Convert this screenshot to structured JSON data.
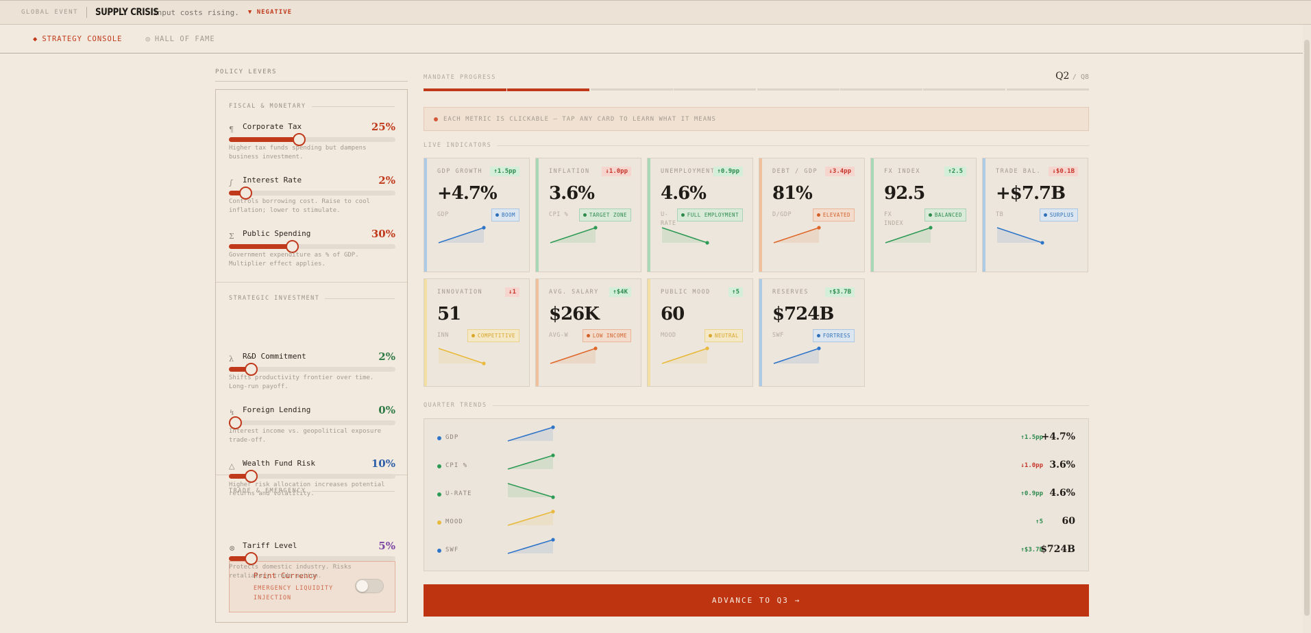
{
  "event": {
    "kicker": "GLOBAL EVENT",
    "title": "SUPPLY CRISIS",
    "description": "Input costs rising.",
    "badge": "▼ NEGATIVE"
  },
  "nav": [
    {
      "label": "STRATEGY CONSOLE",
      "icon": "◆",
      "active": true
    },
    {
      "label": "HALL OF FAME",
      "icon": "◎",
      "active": false
    }
  ],
  "levers": {
    "title": "POLICY LEVERS",
    "sections": [
      {
        "title": "FISCAL & MONETARY"
      },
      {
        "title": "STRATEGIC INVESTMENT"
      },
      {
        "title": "TRADE & EMERGENCY"
      }
    ],
    "items": [
      {
        "icon": "¶",
        "name": "Corporate Tax",
        "value": "25%",
        "fraction": 0.42,
        "color": "#c0391b",
        "desc": "Higher tax funds spending but dampens business investment."
      },
      {
        "icon": "∫",
        "name": "Interest Rate",
        "value": "2%",
        "fraction": 0.1,
        "color": "#c0391b",
        "desc": "Controls borrowing cost. Raise to cool inflation; lower to stimulate."
      },
      {
        "icon": "Σ",
        "name": "Public Spending",
        "value": "30%",
        "fraction": 0.38,
        "color": "#c0391b",
        "desc": "Government expenditure as % of GDP. Multiplier effect applies."
      },
      {
        "icon": "λ",
        "name": "R&D Commitment",
        "value": "2%",
        "fraction": 0.13,
        "color": "#2d7a45",
        "desc": "Shifts productivity frontier over time. Long-run payoff."
      },
      {
        "icon": "↯",
        "name": "Foreign Lending",
        "value": "0%",
        "fraction": 0.0,
        "color": "#2d7a45",
        "desc": "Interest income vs. geopolitical exposure trade-off."
      },
      {
        "icon": "△",
        "name": "Wealth Fund Risk",
        "value": "10%",
        "fraction": 0.13,
        "color": "#2f5fa8",
        "desc": "Higher risk allocation increases potential returns and volatility."
      },
      {
        "icon": "⊗",
        "name": "Tariff Level",
        "value": "5%",
        "fraction": 0.13,
        "color": "#7b46a3",
        "desc": "Protects domestic industry. Risks retaliatory trade action."
      }
    ],
    "print_currency": {
      "title": "Print Currency",
      "subtitle": "EMERGENCY LIQUIDITY INJECTION",
      "enabled": false
    }
  },
  "mandate": {
    "label": "MANDATE PROGRESS",
    "quarter": "Q2",
    "of": "/ Q8",
    "current": 2,
    "total": 8
  },
  "hint": "EACH METRIC IS CLICKABLE — TAP ANY CARD TO LEARN WHAT IT MEANS",
  "live_title": "LIVE INDICATORS",
  "cards": [
    {
      "label": "GDP GROWTH",
      "delta": "↑1.5pp",
      "dir": "up",
      "value": "+4.7%",
      "unit": "GDP",
      "tag": "BOOM",
      "tag_style": "blue",
      "color": "#2e74c9",
      "bar": "#aecbe6",
      "trend": [
        0,
        1
      ]
    },
    {
      "label": "INFLATION",
      "delta": "↓1.0pp",
      "dir": "down",
      "value": "3.6%",
      "unit": "CPI %",
      "tag": "TARGET ZONE",
      "tag_style": "green",
      "color": "#2d9a55",
      "bar": "#a9d8b6",
      "trend": [
        0,
        1
      ]
    },
    {
      "label": "UNEMPLOYMENT",
      "delta": "↑0.9pp",
      "dir": "up",
      "value": "4.6%",
      "unit": "U-RATE",
      "tag": "FULL EMPLOYMENT",
      "tag_style": "green",
      "color": "#2d9a55",
      "bar": "#a9d8b6",
      "trend": [
        1,
        0
      ]
    },
    {
      "label": "DEBT / GDP",
      "delta": "↓3.4pp",
      "dir": "down",
      "value": "81%",
      "unit": "D/GDP",
      "tag": "ELEVATED",
      "tag_style": "orange",
      "color": "#e0672a",
      "bar": "#f0bf9c",
      "trend": [
        0,
        1
      ]
    },
    {
      "label": "FX INDEX",
      "delta": "↑2.5",
      "dir": "up",
      "value": "92.5",
      "unit": "FX INDEX",
      "tag": "BALANCED",
      "tag_style": "green",
      "color": "#2d9a55",
      "bar": "#a9d8b6",
      "trend": [
        0,
        1
      ]
    },
    {
      "label": "TRADE BAL.",
      "delta": "↓$0.1B",
      "dir": "down",
      "value": "+$7.7B",
      "unit": "TB",
      "tag": "SURPLUS",
      "tag_style": "blue",
      "color": "#2e74c9",
      "bar": "#aecbe6",
      "trend": [
        1,
        0
      ]
    },
    {
      "label": "INNOVATION",
      "delta": "↓1",
      "dir": "down",
      "value": "51",
      "unit": "INN",
      "tag": "COMPETITIVE",
      "tag_style": "yellow",
      "color": "#e8b93a",
      "bar": "#f3dea3",
      "trend": [
        1,
        0
      ]
    },
    {
      "label": "AVG. SALARY",
      "delta": "↑$4K",
      "dir": "up",
      "value": "$26K",
      "unit": "AVG-W",
      "tag": "LOW INCOME",
      "tag_style": "orange",
      "color": "#e0672a",
      "bar": "#f0bf9c",
      "trend": [
        0,
        1
      ]
    },
    {
      "label": "PUBLIC MOOD",
      "delta": "↑5",
      "dir": "up",
      "value": "60",
      "unit": "MOOD",
      "tag": "NEUTRAL",
      "tag_style": "yellow",
      "color": "#e8b93a",
      "bar": "#f3dea3",
      "trend": [
        0,
        1
      ]
    },
    {
      "label": "RESERVES",
      "delta": "↑$3.7B",
      "dir": "up",
      "value": "$724B",
      "unit": "SWF",
      "tag": "FORTRESS",
      "tag_style": "blue",
      "color": "#2e74c9",
      "bar": "#aecbe6",
      "trend": [
        0,
        1
      ]
    }
  ],
  "trends": {
    "title": "QUARTER TRENDS",
    "rows": [
      {
        "label": "GDP",
        "delta": "↑1.5pp",
        "dir": "up",
        "value": "+4.7%",
        "color": "#2e74c9",
        "trend": [
          0,
          1
        ]
      },
      {
        "label": "CPI %",
        "delta": "↓1.0pp",
        "dir": "down",
        "value": "3.6%",
        "color": "#2d9a55",
        "trend": [
          0,
          1
        ]
      },
      {
        "label": "U-RATE",
        "delta": "↑0.9pp",
        "dir": "up",
        "value": "4.6%",
        "color": "#2d9a55",
        "trend": [
          1,
          0
        ]
      },
      {
        "label": "MOOD",
        "delta": "↑5",
        "dir": "up",
        "value": "60",
        "color": "#e8b93a",
        "trend": [
          0,
          1
        ]
      },
      {
        "label": "SWF",
        "delta": "↑$3.7B",
        "dir": "up",
        "value": "$724B",
        "color": "#2e74c9",
        "trend": [
          0,
          1
        ]
      }
    ]
  },
  "advance_label": "ADVANCE TO Q3 →"
}
